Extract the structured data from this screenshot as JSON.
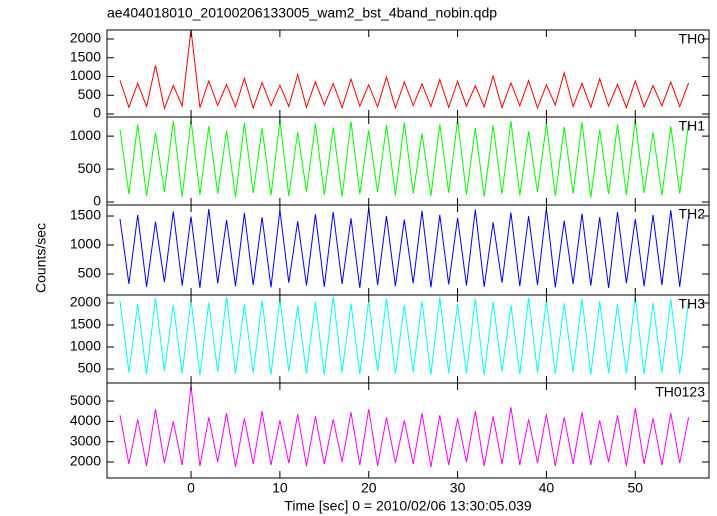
{
  "chart_data": [
    {
      "type": "line",
      "title": "ae404018010_20100206133005_wam2_bst_4band_nobin.qdp",
      "label": "TH0",
      "color": "#ff0000",
      "xlim": [
        -9.46,
        58.3
      ],
      "ylim": [
        -80,
        2240
      ],
      "yticks": [
        0,
        500,
        1000,
        1500,
        2000
      ],
      "x": [
        -8,
        -7,
        -6,
        -5,
        -4,
        -3,
        -2,
        -1,
        0,
        1,
        2,
        3,
        4,
        5,
        6,
        7,
        8,
        9,
        10,
        11,
        12,
        13,
        14,
        15,
        16,
        17,
        18,
        19,
        20,
        21,
        22,
        23,
        24,
        25,
        26,
        27,
        28,
        29,
        30,
        31,
        32,
        33,
        34,
        35,
        36,
        37,
        38,
        39,
        40,
        41,
        42,
        43,
        44,
        45,
        46,
        47,
        48,
        49,
        50,
        51,
        52,
        53,
        54,
        55,
        56
      ],
      "values": [
        900,
        180,
        820,
        200,
        1300,
        150,
        760,
        210,
        2250,
        170,
        880,
        230,
        790,
        190,
        950,
        160,
        840,
        220,
        770,
        200,
        1050,
        180,
        860,
        240,
        810,
        170,
        930,
        210,
        780,
        190,
        990,
        160,
        850,
        230,
        800,
        200,
        920,
        180,
        870,
        210,
        760,
        190,
        1010,
        170,
        830,
        220,
        890,
        160,
        780,
        240,
        1100,
        200,
        820,
        180,
        940,
        210,
        790,
        170,
        880,
        190,
        760,
        220,
        850,
        200,
        830
      ]
    },
    {
      "type": "line",
      "label": "TH1",
      "color": "#00ff00",
      "xlim": [
        -9.46,
        58.3
      ],
      "ylim": [
        -45,
        1290
      ],
      "yticks": [
        0,
        500,
        1000
      ],
      "x": [
        -8,
        -7,
        -6,
        -5,
        -4,
        -3,
        -2,
        -1,
        0,
        1,
        2,
        3,
        4,
        5,
        6,
        7,
        8,
        9,
        10,
        11,
        12,
        13,
        14,
        15,
        16,
        17,
        18,
        19,
        20,
        21,
        22,
        23,
        24,
        25,
        26,
        27,
        28,
        29,
        30,
        31,
        32,
        33,
        34,
        35,
        36,
        37,
        38,
        39,
        40,
        41,
        42,
        43,
        44,
        45,
        46,
        47,
        48,
        49,
        50,
        51,
        52,
        53,
        54,
        55,
        56
      ],
      "values": [
        1100,
        120,
        1180,
        90,
        1050,
        150,
        1230,
        80,
        1250,
        110,
        1150,
        130,
        1080,
        70,
        1200,
        140,
        1120,
        100,
        1240,
        90,
        1060,
        160,
        1190,
        110,
        1130,
        80,
        1220,
        120,
        1090,
        150,
        1170,
        100,
        1210,
        130,
        1040,
        90,
        1180,
        140,
        1250,
        110,
        1120,
        80,
        1160,
        120,
        1230,
        100,
        1070,
        150,
        1190,
        90,
        1140,
        130,
        1210,
        70,
        1100,
        120,
        1180,
        110,
        1240,
        140,
        1060,
        100,
        1150,
        130,
        1200
      ]
    },
    {
      "type": "line",
      "label": "TH2",
      "ylabel": "Counts/sec",
      "color": "#0000ff",
      "xlim": [
        -9.46,
        58.3
      ],
      "ylim": [
        138,
        1690
      ],
      "yticks": [
        500,
        1000,
        1500
      ],
      "x": [
        -8,
        -7,
        -6,
        -5,
        -4,
        -3,
        -2,
        -1,
        0,
        1,
        2,
        3,
        4,
        5,
        6,
        7,
        8,
        9,
        10,
        11,
        12,
        13,
        14,
        15,
        16,
        17,
        18,
        19,
        20,
        21,
        22,
        23,
        24,
        25,
        26,
        27,
        28,
        29,
        30,
        31,
        32,
        33,
        34,
        35,
        36,
        37,
        38,
        39,
        40,
        41,
        42,
        43,
        44,
        45,
        46,
        47,
        48,
        49,
        50,
        51,
        52,
        53,
        54,
        55,
        56
      ],
      "values": [
        1450,
        330,
        1520,
        280,
        1400,
        360,
        1580,
        300,
        1490,
        260,
        1620,
        340,
        1430,
        290,
        1550,
        310,
        1480,
        270,
        1600,
        350,
        1410,
        300,
        1530,
        280,
        1570,
        330,
        1460,
        260,
        1640,
        310,
        1500,
        290,
        1440,
        340,
        1590,
        270,
        1520,
        320,
        1470,
        300,
        1610,
        280,
        1390,
        350,
        1560,
        290,
        1500,
        310,
        1630,
        270,
        1420,
        330,
        1540,
        300,
        1480,
        260,
        1570,
        340,
        1450,
        290,
        1520,
        310,
        1600,
        280,
        1490
      ]
    },
    {
      "type": "line",
      "label": "TH3",
      "color": "#00ffff",
      "xlim": [
        -9.46,
        58.3
      ],
      "ylim": [
        182,
        2182
      ],
      "yticks": [
        500,
        1000,
        1500,
        2000
      ],
      "x": [
        -8,
        -7,
        -6,
        -5,
        -4,
        -3,
        -2,
        -1,
        0,
        1,
        2,
        3,
        4,
        5,
        6,
        7,
        8,
        9,
        10,
        11,
        12,
        13,
        14,
        15,
        16,
        17,
        18,
        19,
        20,
        21,
        22,
        23,
        24,
        25,
        26,
        27,
        28,
        29,
        30,
        31,
        32,
        33,
        34,
        35,
        36,
        37,
        38,
        39,
        40,
        41,
        42,
        43,
        44,
        45,
        46,
        47,
        48,
        49,
        50,
        51,
        52,
        53,
        54,
        55,
        56
      ],
      "values": [
        2050,
        420,
        1980,
        380,
        2120,
        450,
        1950,
        400,
        2080,
        360,
        2010,
        430,
        2140,
        390,
        1970,
        410,
        2060,
        370,
        2100,
        440,
        1930,
        400,
        2030,
        360,
        2150,
        420,
        1990,
        380,
        2070,
        450,
        2110,
        390,
        1960,
        430,
        2040,
        370,
        2130,
        410,
        1980,
        400,
        2090,
        360,
        2020,
        440,
        1950,
        380,
        2120,
        420,
        2060,
        390,
        1990,
        430,
        2100,
        370,
        2040,
        410,
        1970,
        400,
        2130,
        380,
        2000,
        420,
        2080,
        390,
        2050
      ]
    },
    {
      "type": "line",
      "label": "TH0123",
      "xlabel": "Time [sec] 0 = 2010/02/06 13:30:05.039",
      "color": "#ff00ff",
      "xlim": [
        -9.46,
        58.3
      ],
      "ylim": [
        1210,
        5890
      ],
      "yticks": [
        2000,
        3000,
        4000,
        5000
      ],
      "xticks": [
        0,
        10,
        20,
        30,
        40,
        50
      ],
      "x": [
        -8,
        -7,
        -6,
        -5,
        -4,
        -3,
        -2,
        -1,
        0,
        1,
        2,
        3,
        4,
        5,
        6,
        7,
        8,
        9,
        10,
        11,
        12,
        13,
        14,
        15,
        16,
        17,
        18,
        19,
        20,
        21,
        22,
        23,
        24,
        25,
        26,
        27,
        28,
        29,
        30,
        31,
        32,
        33,
        34,
        35,
        36,
        37,
        38,
        39,
        40,
        41,
        42,
        43,
        44,
        45,
        46,
        47,
        48,
        49,
        50,
        51,
        52,
        53,
        54,
        55,
        56
      ],
      "values": [
        4300,
        1900,
        4100,
        1800,
        4600,
        1950,
        4000,
        1850,
        5750,
        1800,
        4200,
        2000,
        4400,
        1750,
        4150,
        1900,
        4500,
        1850,
        4050,
        1950,
        4350,
        1800,
        4250,
        1900,
        4100,
        2000,
        4450,
        1850,
        4600,
        1800,
        4200,
        1950,
        4050,
        1900,
        4400,
        1750,
        4300,
        1850,
        4150,
        2000,
        4500,
        1800,
        4250,
        1900,
        4700,
        1850,
        4100,
        1950,
        4350,
        1800,
        4200,
        1900,
        4450,
        1850,
        4050,
        2000,
        4300,
        1800,
        4650,
        1900,
        4150,
        1850,
        4400,
        1950,
        4200
      ]
    }
  ]
}
